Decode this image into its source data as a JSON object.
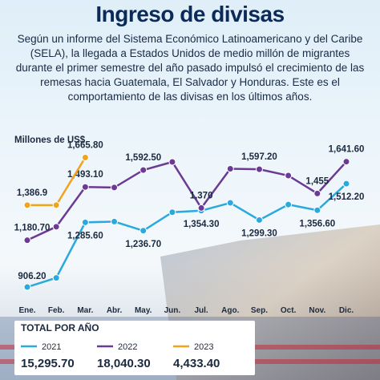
{
  "chart_data": {
    "type": "line",
    "title": "Ingreso de divisas",
    "subtitle": "Según un informe del Sistema Económico Latinoamericano y del Caribe (SELA), la llegada a Estados Unidos de medio millón de migrantes durante el primer semestre del año pasado impulsó el crecimiento de las remesas hacia Guatemala, El Salvador y Honduras. Este es el comportamiento de las divisas en los últimos años.",
    "y_label": "Millones de US$",
    "categories": [
      "Ene.",
      "Feb.",
      "Mar.",
      "Abr.",
      "May.",
      "Jun.",
      "Jul.",
      "Ago.",
      "Sep.",
      "Oct.",
      "Nov.",
      "Dic."
    ],
    "ylim": [
      850,
      1720
    ],
    "series": [
      {
        "name": "2021",
        "color": "#29a9dd",
        "values": [
          906.2,
          960,
          1285.6,
          1290,
          1236.7,
          1345,
          1354.3,
          1400,
          1299.3,
          1390,
          1356.6,
          1512.2
        ],
        "value_labels": [
          "906.20",
          null,
          "1,285.60",
          null,
          "1,236.70",
          null,
          "1,354.30",
          null,
          "1,299.30",
          null,
          "1,356.60",
          "1,512.20"
        ]
      },
      {
        "name": "2022",
        "color": "#6b3a94",
        "values": [
          1180.7,
          1260,
          1493.1,
          1490,
          1592.5,
          1640,
          1370,
          1600,
          1597.2,
          1560,
          1455,
          1641.6
        ],
        "value_labels": [
          "1,180.70",
          null,
          "1,493.10",
          null,
          "1,592.50",
          null,
          "1,370",
          null,
          "1,597.20",
          null,
          "1,455",
          "1,641.60"
        ]
      },
      {
        "name": "2023",
        "color": "#f2a31b",
        "values": [
          1386.9,
          1386.9,
          1665.8,
          null,
          null,
          null,
          null,
          null,
          null,
          null,
          null,
          null
        ],
        "value_labels": [
          "1,386.9",
          null,
          "1,665.80",
          null,
          null,
          null,
          null,
          null,
          null,
          null,
          null,
          null
        ]
      }
    ],
    "totals_title": "TOTAL POR AÑO",
    "totals": [
      "15,295.70",
      "18,040.30",
      "4,433.40"
    ]
  }
}
